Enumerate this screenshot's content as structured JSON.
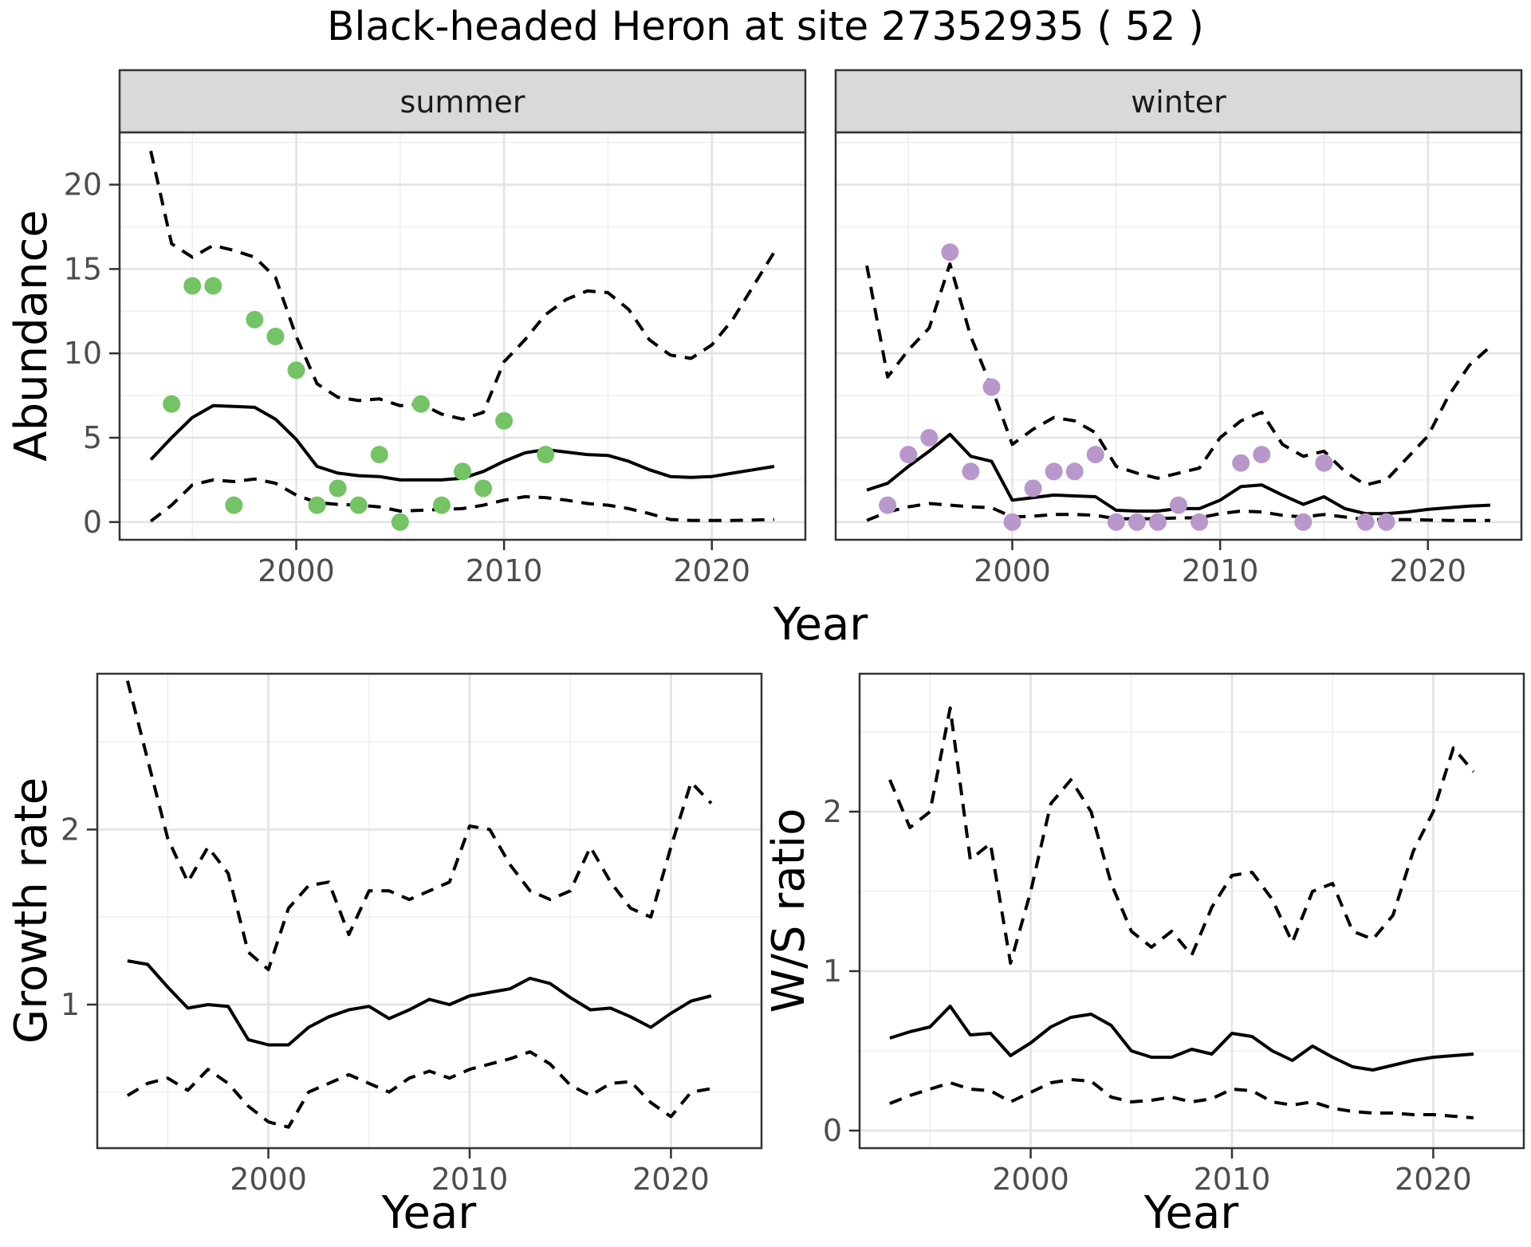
{
  "title": "Black-headed Heron at site 27352935 ( 52 )",
  "colors": {
    "summer_points": "#74C365",
    "winter_points": "#B897CB",
    "line": "#000000",
    "strip_background": "#D9D9D9",
    "panel_border": "#333333",
    "grid_major": "#E3E3E3",
    "grid_minor": "#EFEFEF",
    "axis_text": "#4D4D4D"
  },
  "chart_data": [
    {
      "id": "abundance_summer",
      "type": "scatter",
      "facet_label": "summer",
      "xlabel": "Year",
      "ylabel": "Abundance",
      "xlim": [
        1991.5,
        2024.5
      ],
      "ylim": [
        -1.05,
        23.1
      ],
      "x_ticks": [
        2000,
        2010,
        2020
      ],
      "y_ticks": [
        0,
        5,
        10,
        15,
        20
      ],
      "x_minor": [
        1995,
        2005,
        2015
      ],
      "y_minor": [
        2.5,
        7.5,
        12.5,
        17.5,
        22.5
      ],
      "grid": true,
      "legend": "none",
      "series": [
        {
          "name": "upper-95ci",
          "style": "dashed",
          "x": [
            1993,
            1994,
            1995,
            1996,
            1997,
            1998,
            1999,
            2000,
            2001,
            2002,
            2003,
            2004,
            2005,
            2006,
            2007,
            2008,
            2009,
            2010,
            2011,
            2012,
            2013,
            2014,
            2015,
            2016,
            2017,
            2018,
            2019,
            2020,
            2021,
            2022,
            2023
          ],
          "y": [
            22,
            16.5,
            15.7,
            16.4,
            16.1,
            15.7,
            14.5,
            11.0,
            8.2,
            7.4,
            7.2,
            7.3,
            6.9,
            7.0,
            6.4,
            6.1,
            6.5,
            9.5,
            10.8,
            12.3,
            13.2,
            13.7,
            13.6,
            12.6,
            10.8,
            9.9,
            9.7,
            10.5,
            12.0,
            14.0,
            16.0
          ]
        },
        {
          "name": "fit",
          "style": "solid",
          "x": [
            1993,
            1994,
            1995,
            1996,
            1997,
            1998,
            1999,
            2000,
            2001,
            2002,
            2003,
            2004,
            2005,
            2006,
            2007,
            2008,
            2009,
            2010,
            2011,
            2012,
            2013,
            2014,
            2015,
            2016,
            2017,
            2018,
            2019,
            2020,
            2021,
            2022,
            2023
          ],
          "y": [
            3.7,
            5.0,
            6.2,
            6.9,
            6.85,
            6.8,
            6.1,
            4.9,
            3.3,
            2.9,
            2.75,
            2.7,
            2.5,
            2.5,
            2.5,
            2.6,
            3.0,
            3.6,
            4.1,
            4.3,
            4.15,
            4.0,
            3.95,
            3.6,
            3.1,
            2.7,
            2.65,
            2.7,
            2.9,
            3.1,
            3.3
          ]
        },
        {
          "name": "lower-95ci",
          "style": "dashed",
          "x": [
            1993,
            1994,
            1995,
            1996,
            1997,
            1998,
            1999,
            2000,
            2001,
            2002,
            2003,
            2004,
            2005,
            2006,
            2007,
            2008,
            2009,
            2010,
            2011,
            2012,
            2013,
            2014,
            2015,
            2016,
            2017,
            2018,
            2019,
            2020,
            2021,
            2022,
            2023
          ],
          "y": [
            0.05,
            1.0,
            2.2,
            2.5,
            2.4,
            2.55,
            2.3,
            1.6,
            1.15,
            1.05,
            1.0,
            0.9,
            0.65,
            0.7,
            0.75,
            0.8,
            1.0,
            1.3,
            1.5,
            1.45,
            1.3,
            1.1,
            1.0,
            0.8,
            0.5,
            0.15,
            0.1,
            0.1,
            0.1,
            0.12,
            0.15
          ]
        },
        {
          "name": "observed-counts",
          "style": "points",
          "color": "#74C365",
          "x": [
            1994,
            1995,
            1996,
            1997,
            1998,
            1999,
            2000,
            2001,
            2002,
            2003,
            2004,
            2005,
            2006,
            2007,
            2008,
            2009,
            2010,
            2012
          ],
          "y": [
            7,
            14,
            14,
            1,
            12,
            11,
            9,
            1,
            2,
            1,
            4,
            0,
            7,
            1,
            3,
            2,
            6,
            4
          ]
        }
      ]
    },
    {
      "id": "abundance_winter",
      "type": "scatter",
      "facet_label": "winter",
      "xlabel": "Year",
      "ylabel": "Abundance",
      "xlim": [
        1991.5,
        2024.5
      ],
      "ylim": [
        -1.05,
        23.1
      ],
      "x_ticks": [
        2000,
        2010,
        2020
      ],
      "y_ticks": [
        0,
        5,
        10,
        15,
        20
      ],
      "x_minor": [
        1995,
        2005,
        2015
      ],
      "y_minor": [
        2.5,
        7.5,
        12.5,
        17.5,
        22.5
      ],
      "grid": true,
      "legend": "none",
      "series": [
        {
          "name": "upper-95ci",
          "style": "dashed",
          "x": [
            1993,
            1994,
            1995,
            1996,
            1997,
            1998,
            1999,
            2000,
            2001,
            2002,
            2003,
            2004,
            2005,
            2006,
            2007,
            2008,
            2009,
            2010,
            2011,
            2012,
            2013,
            2014,
            2015,
            2016,
            2017,
            2018,
            2019,
            2020,
            2021,
            2022,
            2023
          ],
          "y": [
            15.2,
            8.6,
            10.2,
            11.5,
            15.3,
            11.0,
            8.0,
            4.6,
            5.5,
            6.2,
            6.0,
            5.3,
            3.3,
            2.9,
            2.6,
            2.9,
            3.2,
            5.0,
            6.0,
            6.5,
            4.6,
            3.9,
            4.2,
            3.0,
            2.2,
            2.5,
            3.8,
            5.1,
            7.5,
            9.3,
            10.4
          ]
        },
        {
          "name": "fit",
          "style": "solid",
          "x": [
            1993,
            1994,
            1995,
            1996,
            1997,
            1998,
            1999,
            2000,
            2001,
            2002,
            2003,
            2004,
            2005,
            2006,
            2007,
            2008,
            2009,
            2010,
            2011,
            2012,
            2013,
            2014,
            2015,
            2016,
            2017,
            2018,
            2019,
            2020,
            2021,
            2022,
            2023
          ],
          "y": [
            1.9,
            2.3,
            3.3,
            4.2,
            5.2,
            3.9,
            3.6,
            1.3,
            1.45,
            1.6,
            1.55,
            1.5,
            0.7,
            0.65,
            0.65,
            0.8,
            0.8,
            1.3,
            2.1,
            2.2,
            1.6,
            1.05,
            1.5,
            0.8,
            0.5,
            0.5,
            0.6,
            0.75,
            0.85,
            0.95,
            1.0
          ]
        },
        {
          "name": "lower-95ci",
          "style": "dashed",
          "x": [
            1993,
            1994,
            1995,
            1996,
            1997,
            1998,
            1999,
            2000,
            2001,
            2002,
            2003,
            2004,
            2005,
            2006,
            2007,
            2008,
            2009,
            2010,
            2011,
            2012,
            2013,
            2014,
            2015,
            2016,
            2017,
            2018,
            2019,
            2020,
            2021,
            2022,
            2023
          ],
          "y": [
            0.1,
            0.6,
            0.9,
            1.1,
            1.0,
            0.9,
            0.85,
            0.3,
            0.35,
            0.45,
            0.45,
            0.4,
            0.2,
            0.2,
            0.2,
            0.25,
            0.25,
            0.5,
            0.65,
            0.6,
            0.4,
            0.3,
            0.45,
            0.3,
            0.15,
            0.15,
            0.15,
            0.12,
            0.1,
            0.1,
            0.1
          ]
        },
        {
          "name": "observed-counts",
          "style": "points",
          "color": "#B897CB",
          "x": [
            1994,
            1995,
            1996,
            1997,
            1998,
            1999,
            2000,
            2001,
            2002,
            2003,
            2004,
            2005,
            2006,
            2007,
            2008,
            2009,
            2011,
            2012,
            2014,
            2015,
            2017,
            2018
          ],
          "y": [
            1,
            4,
            5,
            16,
            3,
            8,
            0,
            2,
            3,
            3,
            4,
            0,
            0,
            0,
            1,
            0,
            3.5,
            4,
            0,
            3.5,
            0,
            0
          ]
        }
      ]
    },
    {
      "id": "growth_rate",
      "type": "line",
      "facet_label": "",
      "xlabel": "Year",
      "ylabel": "Growth rate",
      "xlim": [
        1991.5,
        2024.5
      ],
      "ylim": [
        0.18,
        2.89
      ],
      "x_ticks": [
        2000,
        2010,
        2020
      ],
      "y_ticks": [
        1,
        2
      ],
      "x_minor": [
        1995,
        2005,
        2015
      ],
      "y_minor": [
        0.5,
        1.5,
        2.5
      ],
      "grid": true,
      "legend": "none",
      "series": [
        {
          "name": "upper-95ci",
          "style": "dashed",
          "x": [
            1993,
            1994,
            1995,
            1996,
            1997,
            1998,
            1999,
            2000,
            2001,
            2002,
            2003,
            2004,
            2005,
            2006,
            2007,
            2008,
            2009,
            2010,
            2011,
            2012,
            2013,
            2014,
            2015,
            2016,
            2017,
            2018,
            2019,
            2020,
            2021,
            2022
          ],
          "y": [
            2.85,
            2.4,
            1.95,
            1.7,
            1.9,
            1.75,
            1.3,
            1.2,
            1.55,
            1.68,
            1.7,
            1.4,
            1.65,
            1.65,
            1.6,
            1.65,
            1.7,
            2.02,
            2.0,
            1.8,
            1.65,
            1.6,
            1.65,
            1.9,
            1.7,
            1.55,
            1.5,
            1.9,
            2.27,
            2.15
          ]
        },
        {
          "name": "fit",
          "style": "solid",
          "x": [
            1993,
            1994,
            1995,
            1996,
            1997,
            1998,
            1999,
            2000,
            2001,
            2002,
            2003,
            2004,
            2005,
            2006,
            2007,
            2008,
            2009,
            2010,
            2011,
            2012,
            2013,
            2014,
            2015,
            2016,
            2017,
            2018,
            2019,
            2020,
            2021,
            2022
          ],
          "y": [
            1.25,
            1.23,
            1.1,
            0.98,
            1.0,
            0.99,
            0.8,
            0.77,
            0.77,
            0.87,
            0.93,
            0.97,
            0.99,
            0.92,
            0.97,
            1.03,
            1.0,
            1.05,
            1.07,
            1.09,
            1.15,
            1.12,
            1.04,
            0.97,
            0.98,
            0.93,
            0.87,
            0.95,
            1.02,
            1.05
          ]
        },
        {
          "name": "lower-95ci",
          "style": "dashed",
          "x": [
            1993,
            1994,
            1995,
            1996,
            1997,
            1998,
            1999,
            2000,
            2001,
            2002,
            2003,
            2004,
            2005,
            2006,
            2007,
            2008,
            2009,
            2010,
            2011,
            2012,
            2013,
            2014,
            2015,
            2016,
            2017,
            2018,
            2019,
            2020,
            2021,
            2022
          ],
          "y": [
            0.48,
            0.55,
            0.58,
            0.51,
            0.63,
            0.55,
            0.42,
            0.33,
            0.3,
            0.5,
            0.55,
            0.6,
            0.55,
            0.5,
            0.58,
            0.62,
            0.58,
            0.63,
            0.66,
            0.69,
            0.73,
            0.66,
            0.54,
            0.48,
            0.55,
            0.56,
            0.44,
            0.36,
            0.5,
            0.52
          ]
        }
      ]
    },
    {
      "id": "ws_ratio",
      "type": "line",
      "facet_label": "",
      "xlabel": "Year",
      "ylabel": "W/S ratio",
      "xlim": [
        1991.5,
        2024.5
      ],
      "ylim": [
        -0.11,
        2.865
      ],
      "x_ticks": [
        2000,
        2010,
        2020
      ],
      "y_ticks": [
        0,
        1,
        2
      ],
      "x_minor": [
        1995,
        2005,
        2015
      ],
      "y_minor": [
        0.5,
        1.5,
        2.5
      ],
      "grid": true,
      "legend": "none",
      "series": [
        {
          "name": "upper-95ci",
          "style": "dashed",
          "x": [
            1993,
            1994,
            1995,
            1996,
            1997,
            1998,
            1999,
            2000,
            2001,
            2002,
            2003,
            2004,
            2005,
            2006,
            2007,
            2008,
            2009,
            2010,
            2011,
            2012,
            2013,
            2014,
            2015,
            2016,
            2017,
            2018,
            2019,
            2020,
            2021,
            2022
          ],
          "y": [
            2.2,
            1.9,
            2.0,
            2.65,
            1.7,
            1.8,
            1.05,
            1.5,
            2.05,
            2.2,
            2.0,
            1.55,
            1.25,
            1.15,
            1.25,
            1.1,
            1.4,
            1.6,
            1.62,
            1.45,
            1.18,
            1.5,
            1.55,
            1.25,
            1.2,
            1.35,
            1.75,
            2.0,
            2.4,
            2.25
          ]
        },
        {
          "name": "fit",
          "style": "solid",
          "x": [
            1993,
            1994,
            1995,
            1996,
            1997,
            1998,
            1999,
            2000,
            2001,
            2002,
            2003,
            2004,
            2005,
            2006,
            2007,
            2008,
            2009,
            2010,
            2011,
            2012,
            2013,
            2014,
            2015,
            2016,
            2017,
            2018,
            2019,
            2020,
            2021,
            2022
          ],
          "y": [
            0.58,
            0.62,
            0.65,
            0.78,
            0.6,
            0.61,
            0.47,
            0.55,
            0.65,
            0.71,
            0.73,
            0.66,
            0.5,
            0.46,
            0.46,
            0.51,
            0.48,
            0.61,
            0.59,
            0.5,
            0.44,
            0.53,
            0.46,
            0.4,
            0.38,
            0.41,
            0.44,
            0.46,
            0.47,
            0.48
          ]
        },
        {
          "name": "lower-95ci",
          "style": "dashed",
          "x": [
            1993,
            1994,
            1995,
            1996,
            1997,
            1998,
            1999,
            2000,
            2001,
            2002,
            2003,
            2004,
            2005,
            2006,
            2007,
            2008,
            2009,
            2010,
            2011,
            2012,
            2013,
            2014,
            2015,
            2016,
            2017,
            2018,
            2019,
            2020,
            2021,
            2022
          ],
          "y": [
            0.17,
            0.22,
            0.26,
            0.3,
            0.26,
            0.25,
            0.18,
            0.24,
            0.3,
            0.32,
            0.31,
            0.21,
            0.18,
            0.19,
            0.21,
            0.18,
            0.2,
            0.26,
            0.25,
            0.18,
            0.16,
            0.18,
            0.14,
            0.12,
            0.11,
            0.11,
            0.1,
            0.1,
            0.09,
            0.08
          ]
        }
      ]
    }
  ]
}
